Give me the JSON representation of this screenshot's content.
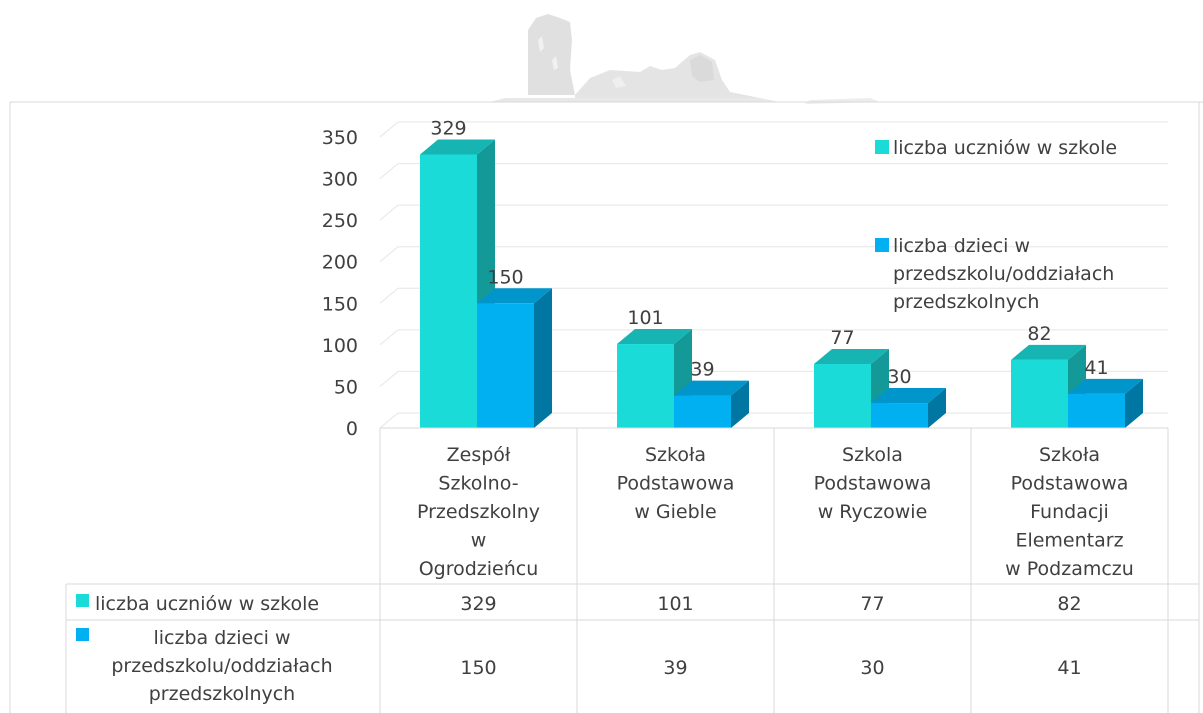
{
  "chart_data": {
    "type": "bar",
    "style": "3d-clustered-column-with-data-table",
    "categories": [
      [
        "Zespół",
        "Szkolno-",
        "Przedszkolny",
        "w",
        "Ogrodzieńcu"
      ],
      [
        "Szkoła",
        "Podstawowa",
        "w Gieble"
      ],
      [
        "Szkola",
        "Podstawowa",
        "w Ryczowie"
      ],
      [
        "Szkoła",
        "Podstawowa",
        "Fundacji",
        "Elementarz",
        "w Podzamczu"
      ]
    ],
    "series": [
      {
        "name": "liczba uczniów w szkole",
        "name_lines": [
          "liczba uczniów w szkole"
        ],
        "color": "#1BDBD9",
        "side_color": "#139A98",
        "top_color": "#16B5B3",
        "values": [
          329,
          101,
          77,
          82
        ]
      },
      {
        "name": "liczba dzieci w przedszkolu/oddziałach przedszkolnych",
        "name_lines": [
          "liczba dzieci w",
          "przedszkolu/oddziałach",
          "przedszkolnych"
        ],
        "color": "#00B0F0",
        "side_color": "#0076A3",
        "top_color": "#0096CC",
        "values": [
          150,
          39,
          30,
          41
        ]
      }
    ],
    "data_labels": [
      [
        "329",
        "101",
        "77",
        "82"
      ],
      [
        "150",
        "39",
        "30",
        "41"
      ]
    ],
    "y_ticks": [
      "350",
      "300",
      "250",
      "200",
      "150",
      "100",
      "50",
      "0"
    ],
    "ylim": [
      0,
      350
    ],
    "title": "",
    "xlabel": "",
    "ylabel": "",
    "legend_position": "right",
    "data_table": true
  }
}
